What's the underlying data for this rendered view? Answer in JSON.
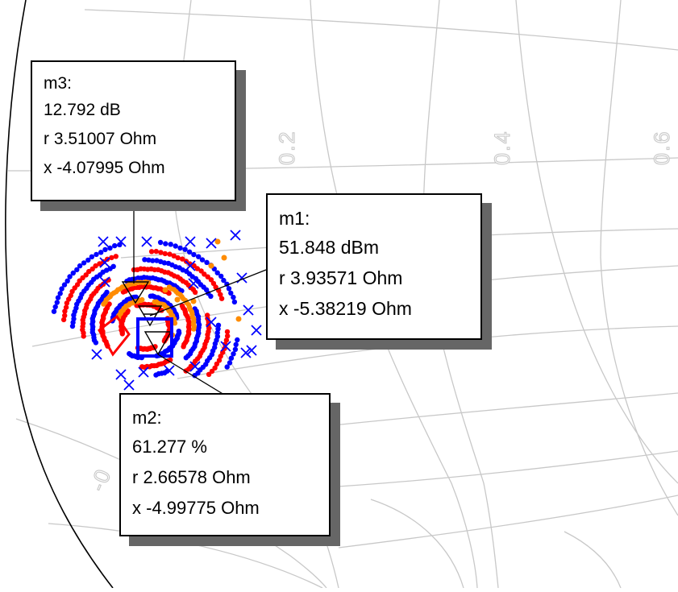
{
  "chart_data": {
    "type": "scatter",
    "title": "",
    "grid": true,
    "tick_labels": {
      "real_axis": [
        "0.2",
        "0.4",
        "0.6"
      ],
      "left_edge": "-0"
    },
    "series": [
      {
        "color": "#ff0000",
        "marker": "dot"
      },
      {
        "color": "#0000ff",
        "marker": "dot"
      },
      {
        "color": "#ff8c00",
        "marker": "dot"
      },
      {
        "color": "#0000ff",
        "marker": "x"
      }
    ],
    "markers": [
      {
        "name": "m3",
        "value": 12.792,
        "unit": "dB",
        "r": 3.51007,
        "x": -4.07995,
        "lines": [
          "m3:",
          "12.792 dB",
          "r 3.51007 Ohm",
          "x -4.07995 Ohm"
        ]
      },
      {
        "name": "m1",
        "value": 51.848,
        "unit": "dBm",
        "r": 3.93571,
        "x": -5.38219,
        "lines": [
          "m1:",
          "51.848 dBm",
          "r 3.93571 Ohm",
          "x -5.38219 Ohm"
        ]
      },
      {
        "name": "m2",
        "value": 61.277,
        "unit": "%",
        "r": 2.66578,
        "x": -4.99775,
        "lines": [
          "m2:",
          "61.277 %",
          "r 2.66578 Ohm",
          "x -4.99775 Ohm"
        ]
      }
    ]
  }
}
